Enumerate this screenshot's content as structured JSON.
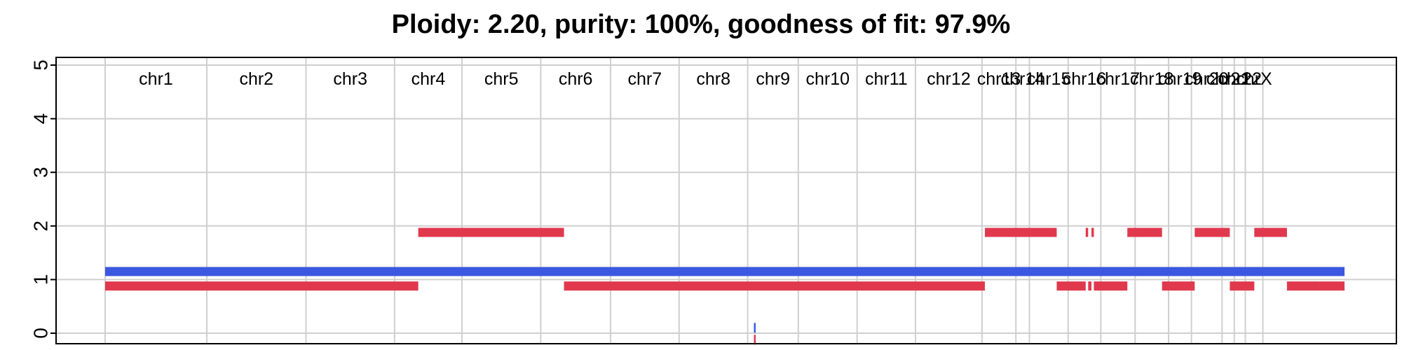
{
  "chart_data": {
    "type": "segments",
    "title": "Ploidy: 2.20, purity: 100%, goodness of fit: 97.9%",
    "xlabel": "",
    "ylabel": "",
    "ylim": [
      0,
      5
    ],
    "yticks": [
      0,
      1,
      2,
      3,
      4,
      5
    ],
    "grid": true,
    "genome_length": 3036,
    "chromosomes": [
      {
        "name": "chr1",
        "length": 249
      },
      {
        "name": "chr2",
        "length": 243
      },
      {
        "name": "chr3",
        "length": 217
      },
      {
        "name": "chr4",
        "length": 165
      },
      {
        "name": "chr5",
        "length": 193
      },
      {
        "name": "chr6",
        "length": 171
      },
      {
        "name": "chr7",
        "length": 168
      },
      {
        "name": "chr8",
        "length": 168
      },
      {
        "name": "chr9",
        "length": 124
      },
      {
        "name": "chr10",
        "length": 144
      },
      {
        "name": "chr11",
        "length": 143
      },
      {
        "name": "chr12",
        "length": 163
      },
      {
        "name": "chr13",
        "length": 83
      },
      {
        "name": "chr14",
        "length": 33
      },
      {
        "name": "chr15",
        "length": 95
      },
      {
        "name": "chr16",
        "length": 80
      },
      {
        "name": "chr17",
        "length": 84
      },
      {
        "name": "chr18",
        "length": 82
      },
      {
        "name": "chr19",
        "length": 56
      },
      {
        "name": "chr20",
        "length": 75
      },
      {
        "name": "chr21",
        "length": 30
      },
      {
        "name": "chr22",
        "length": 27
      },
      {
        "name": "chrX",
        "length": 43
      }
    ],
    "series": [
      {
        "color": "#3c58e0",
        "segments": [
          {
            "start": 0,
            "end": 3036,
            "cn": 1.15
          }
        ]
      },
      {
        "color": "#e0394e",
        "segments": [
          {
            "start": 0,
            "end": 767,
            "cn": 0.88
          },
          {
            "start": 767,
            "end": 1124,
            "cn": 1.88
          },
          {
            "start": 1124,
            "end": 2155,
            "cn": 0.88
          },
          {
            "start": 2155,
            "end": 2331,
            "cn": 1.88
          },
          {
            "start": 2331,
            "end": 2402,
            "cn": 0.88
          },
          {
            "start": 2402,
            "end": 2408,
            "cn": 1.88
          },
          {
            "start": 2408,
            "end": 2416,
            "cn": 0.88
          },
          {
            "start": 2416,
            "end": 2422,
            "cn": 1.88
          },
          {
            "start": 2422,
            "end": 2504,
            "cn": 0.88
          },
          {
            "start": 2504,
            "end": 2589,
            "cn": 1.88
          },
          {
            "start": 2589,
            "end": 2669,
            "cn": 0.88
          },
          {
            "start": 2669,
            "end": 2755,
            "cn": 1.88
          },
          {
            "start": 2755,
            "end": 2815,
            "cn": 0.88
          },
          {
            "start": 2815,
            "end": 2895,
            "cn": 1.88
          },
          {
            "start": 2895,
            "end": 2975,
            "cn": 0.88
          },
          {
            "start": 2975,
            "end": 3036,
            "cn": 0.88
          }
        ]
      }
    ],
    "markers": [
      {
        "x": 1591,
        "cn": 0.1,
        "color": "#3c58e0"
      },
      {
        "x": 1591,
        "cn": -0.12,
        "color": "#e0394e"
      }
    ]
  }
}
